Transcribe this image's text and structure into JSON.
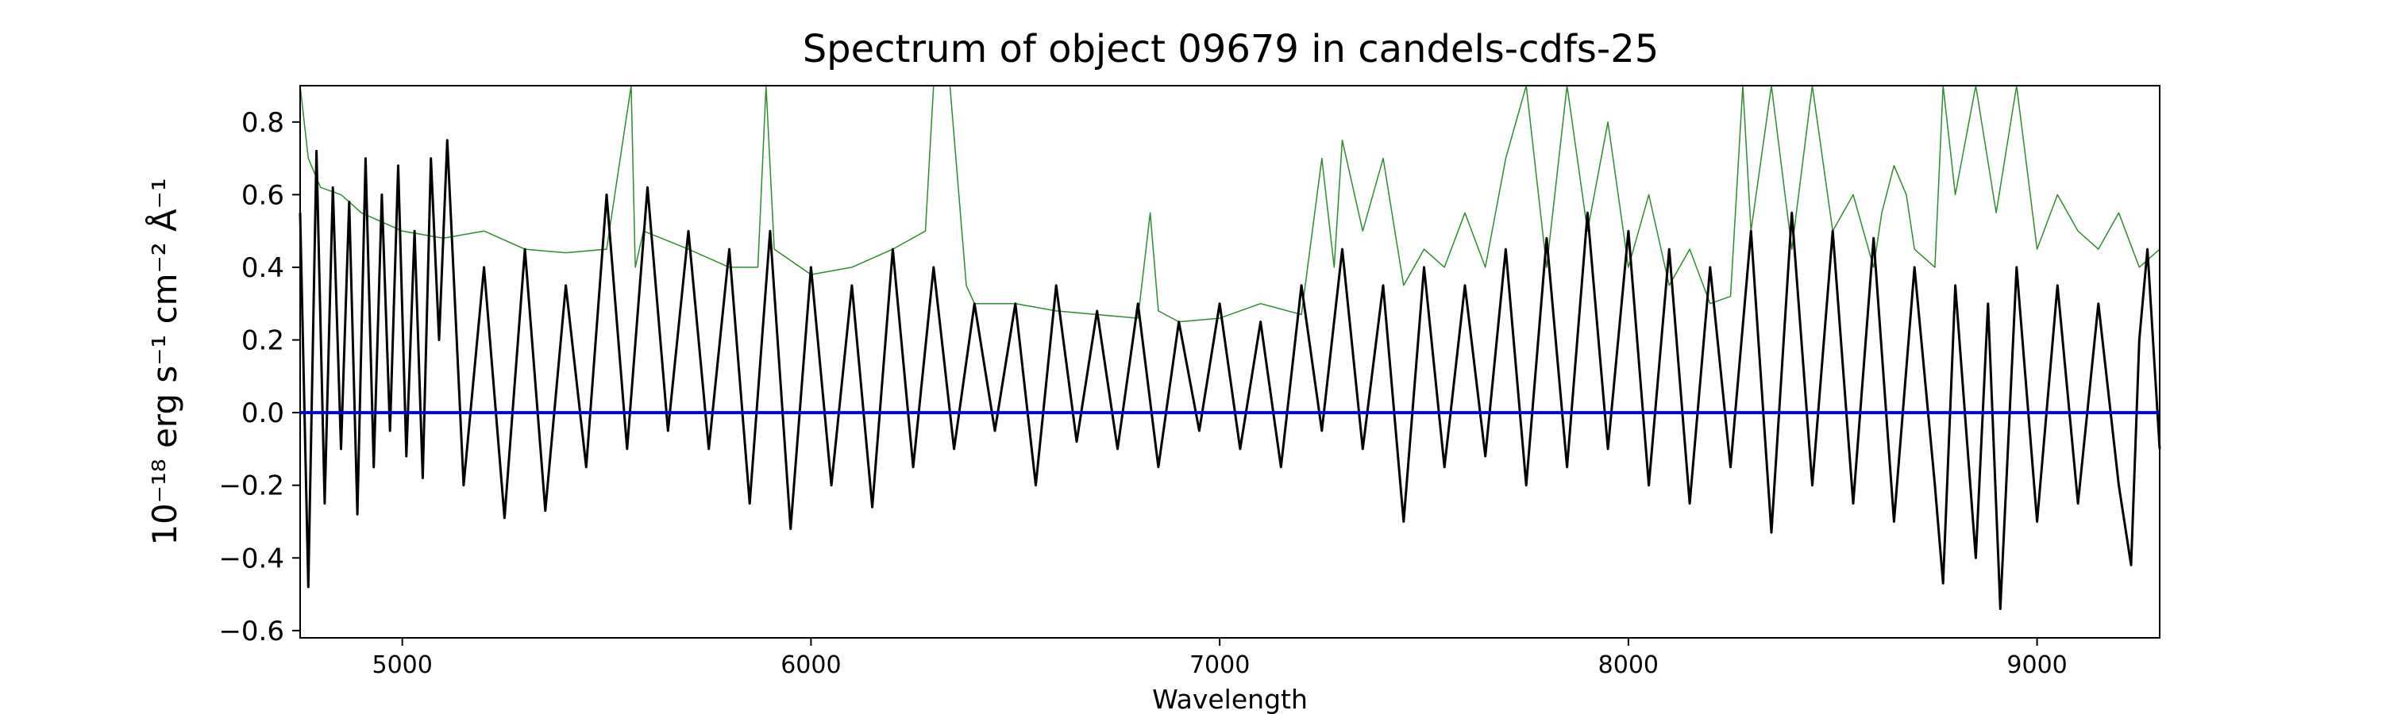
{
  "chart_data": {
    "type": "line",
    "title": "Spectrum of object 09679 in candels-cdfs-25",
    "xlabel": "Wavelength",
    "ylabel": "10⁻¹⁸ erg s⁻¹ cm⁻² Å⁻¹",
    "xlim": [
      4750,
      9300
    ],
    "ylim": [
      -0.62,
      0.9
    ],
    "xticks": [
      5000,
      6000,
      7000,
      8000,
      9000
    ],
    "yticks": [
      -0.6,
      -0.4,
      -0.2,
      0.0,
      0.2,
      0.4,
      0.6,
      0.8
    ],
    "grid": false,
    "legend": "none",
    "colors": {
      "flux": "#000000",
      "noise": "#2e8b2e",
      "zero": "#0000cc"
    },
    "series": [
      {
        "role": "flux",
        "x": [
          4750,
          4770,
          4790,
          4810,
          4830,
          4850,
          4870,
          4890,
          4910,
          4930,
          4950,
          4970,
          4990,
          5010,
          5030,
          5050,
          5070,
          5090,
          5110,
          5150,
          5200,
          5250,
          5300,
          5350,
          5400,
          5450,
          5500,
          5550,
          5600,
          5650,
          5700,
          5750,
          5800,
          5850,
          5900,
          5950,
          6000,
          6050,
          6100,
          6150,
          6200,
          6250,
          6300,
          6350,
          6400,
          6450,
          6500,
          6550,
          6600,
          6650,
          6700,
          6750,
          6800,
          6850,
          6900,
          6950,
          7000,
          7050,
          7100,
          7150,
          7200,
          7250,
          7300,
          7350,
          7400,
          7450,
          7500,
          7550,
          7600,
          7650,
          7700,
          7750,
          7800,
          7850,
          7900,
          7950,
          8000,
          8050,
          8100,
          8150,
          8200,
          8250,
          8300,
          8350,
          8400,
          8450,
          8500,
          8550,
          8600,
          8650,
          8700,
          8750,
          8770,
          8800,
          8850,
          8880,
          8910,
          8950,
          9000,
          9050,
          9100,
          9150,
          9200,
          9230,
          9250,
          9270,
          9300
        ],
        "y": [
          0.55,
          -0.48,
          0.72,
          -0.25,
          0.62,
          -0.1,
          0.58,
          -0.28,
          0.7,
          -0.15,
          0.6,
          -0.05,
          0.68,
          -0.12,
          0.5,
          -0.18,
          0.7,
          0.2,
          0.75,
          -0.2,
          0.4,
          -0.29,
          0.45,
          -0.27,
          0.35,
          -0.15,
          0.6,
          -0.1,
          0.62,
          -0.05,
          0.5,
          -0.1,
          0.45,
          -0.25,
          0.5,
          -0.32,
          0.4,
          -0.2,
          0.35,
          -0.26,
          0.45,
          -0.15,
          0.4,
          -0.1,
          0.3,
          -0.05,
          0.3,
          -0.2,
          0.35,
          -0.08,
          0.28,
          -0.1,
          0.3,
          -0.15,
          0.25,
          -0.05,
          0.3,
          -0.1,
          0.25,
          -0.15,
          0.35,
          -0.05,
          0.45,
          -0.1,
          0.35,
          -0.3,
          0.4,
          -0.15,
          0.35,
          -0.12,
          0.45,
          -0.2,
          0.48,
          -0.15,
          0.55,
          -0.1,
          0.5,
          -0.2,
          0.45,
          -0.25,
          0.4,
          -0.15,
          0.5,
          -0.33,
          0.55,
          -0.2,
          0.5,
          -0.25,
          0.48,
          -0.3,
          0.4,
          -0.2,
          -0.47,
          0.35,
          -0.4,
          0.3,
          -0.54,
          0.4,
          -0.3,
          0.35,
          -0.25,
          0.3,
          -0.2,
          -0.42,
          0.2,
          0.45,
          -0.1
        ]
      },
      {
        "role": "noise",
        "x": [
          4750,
          4770,
          4800,
          4850,
          4900,
          5000,
          5100,
          5200,
          5300,
          5400,
          5500,
          5560,
          5570,
          5590,
          5700,
          5800,
          5870,
          5890,
          5910,
          6000,
          6100,
          6200,
          6280,
          6300,
          6340,
          6380,
          6400,
          6500,
          6600,
          6700,
          6800,
          6830,
          6850,
          6900,
          7000,
          7100,
          7200,
          7250,
          7280,
          7300,
          7350,
          7400,
          7450,
          7500,
          7550,
          7600,
          7650,
          7700,
          7750,
          7800,
          7850,
          7900,
          7950,
          8000,
          8050,
          8100,
          8150,
          8200,
          8250,
          8280,
          8300,
          8350,
          8400,
          8450,
          8500,
          8550,
          8600,
          8620,
          8650,
          8680,
          8700,
          8750,
          8770,
          8800,
          8850,
          8900,
          8950,
          9000,
          9050,
          9100,
          9150,
          9200,
          9250,
          9300
        ],
        "y": [
          0.9,
          0.7,
          0.62,
          0.6,
          0.55,
          0.5,
          0.48,
          0.5,
          0.45,
          0.44,
          0.45,
          0.9,
          0.4,
          0.5,
          0.45,
          0.4,
          0.4,
          0.9,
          0.45,
          0.38,
          0.4,
          0.45,
          0.5,
          0.9,
          0.9,
          0.35,
          0.3,
          0.3,
          0.28,
          0.27,
          0.26,
          0.55,
          0.28,
          0.25,
          0.26,
          0.3,
          0.27,
          0.7,
          0.4,
          0.75,
          0.5,
          0.7,
          0.35,
          0.45,
          0.4,
          0.55,
          0.4,
          0.7,
          0.9,
          0.4,
          0.9,
          0.5,
          0.8,
          0.4,
          0.6,
          0.35,
          0.45,
          0.3,
          0.32,
          0.9,
          0.5,
          0.9,
          0.45,
          0.9,
          0.5,
          0.6,
          0.4,
          0.55,
          0.68,
          0.6,
          0.45,
          0.4,
          0.9,
          0.6,
          0.9,
          0.55,
          0.9,
          0.45,
          0.6,
          0.5,
          0.45,
          0.55,
          0.4,
          0.45
        ]
      },
      {
        "role": "zero",
        "x": [
          4750,
          9300
        ],
        "y": [
          0.0,
          0.0
        ]
      }
    ]
  }
}
